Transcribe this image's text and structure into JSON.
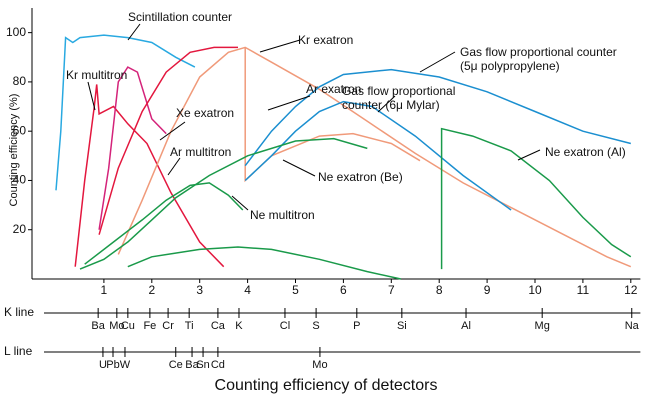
{
  "chart_data": {
    "type": "line",
    "title": "Counting efficiency of detectors",
    "y_label": "Counting efficiency (%)",
    "xlim": [
      -0.5,
      12.2
    ],
    "ylim": [
      0,
      110
    ],
    "xticks": [
      1,
      2,
      3,
      4,
      5,
      6,
      7,
      8,
      9,
      10,
      11,
      12
    ],
    "yticks": [
      20,
      40,
      60,
      80,
      100
    ],
    "series": [
      {
        "name": "Scintillation counter",
        "color": "#29a9e1",
        "x": [
          0,
          0.1,
          0.2,
          0.35,
          0.5,
          1,
          1.5,
          2,
          2.5,
          2.9
        ],
        "values": [
          36,
          60,
          98,
          96,
          98,
          99,
          98,
          96,
          90,
          86
        ]
      },
      {
        "name": "Kr multitron",
        "color": "#e3173e",
        "x": [
          0.4,
          0.6,
          0.8,
          0.85,
          0.9,
          1.2,
          1.5,
          1.9,
          2.4,
          3.0,
          3.5
        ],
        "values": [
          5,
          40,
          70,
          79,
          67,
          70,
          63,
          55,
          35,
          15,
          5
        ]
      },
      {
        "name": "Xe exatron",
        "color": "#d4237a",
        "x": [
          0.9,
          1.1,
          1.3,
          1.5,
          1.7,
          2.0,
          2.3
        ],
        "values": [
          20,
          45,
          80,
          86,
          84,
          65,
          59
        ]
      },
      {
        "name": "Ar multitron",
        "color": "#e3173e",
        "x": [
          0.9,
          1.3,
          1.8,
          2.3,
          2.8,
          3.3,
          3.8
        ],
        "values": [
          18,
          45,
          68,
          84,
          92,
          94,
          94
        ]
      },
      {
        "name": "Kr exatron",
        "color": "#f09a7a",
        "x": [
          1.3,
          1.8,
          2.4,
          3.0,
          3.6,
          3.95,
          4.5,
          5.5,
          6.5,
          7.5,
          8.5,
          9.5,
          10.5,
          11.5,
          12
        ],
        "values": [
          10,
          32,
          60,
          82,
          92,
          94,
          88,
          77,
          64,
          51,
          39,
          29,
          19,
          9,
          5
        ]
      },
      {
        "name": "Ar exatron",
        "color": "#f09a7a",
        "x": [
          3.95,
          3.95,
          4.5,
          5.5,
          6.2,
          7,
          7.6
        ],
        "values": [
          94,
          40,
          50,
          58,
          59,
          55,
          48
        ]
      },
      {
        "name": "Gas flow proportional counter (5μ polypropylene)",
        "color": "#1b8fd0",
        "x": [
          3.95,
          4.5,
          5,
          5.5,
          6,
          7,
          8,
          9,
          10,
          11,
          12
        ],
        "values": [
          46,
          60,
          70,
          78,
          83,
          85,
          82,
          76,
          68,
          60,
          55
        ]
      },
      {
        "name": "Gas flow proportional counter (6μ Mylar)",
        "color": "#1b8fd0",
        "x": [
          3.95,
          4.5,
          5,
          5.5,
          6,
          6.6,
          7.5,
          8.5,
          9.5
        ],
        "values": [
          40,
          50,
          60,
          68,
          72,
          70,
          58,
          42,
          28
        ]
      },
      {
        "name": "Ne exatron (Be)",
        "color": "#1a9a4a",
        "x": [
          0.5,
          1,
          1.5,
          2,
          2.5,
          3.2,
          4,
          5,
          5.8,
          6.5
        ],
        "values": [
          4,
          8,
          15,
          24,
          33,
          42,
          50,
          56,
          57,
          53
        ]
      },
      {
        "name": "Ne multitron",
        "color": "#1a9a4a",
        "x": [
          0.6,
          1.2,
          1.8,
          2.3,
          2.8,
          3.2,
          3.6,
          3.9
        ],
        "values": [
          6,
          15,
          24,
          32,
          38,
          39,
          34,
          28
        ]
      },
      {
        "name": "Ne exatron (Al)",
        "color": "#1a9a4a",
        "x": [
          8.05,
          8.05,
          8.7,
          9.5,
          10.3,
          11,
          11.6,
          12
        ],
        "values": [
          4,
          61,
          58,
          52,
          40,
          25,
          14,
          9
        ]
      },
      {
        "color": "#1a9a4a",
        "x": [
          1.5,
          2,
          3,
          3.8,
          4.5,
          5.5,
          6.5,
          7.2
        ],
        "values": [
          5,
          9,
          12,
          13,
          12,
          8,
          3,
          0
        ]
      }
    ],
    "k_line": {
      "label": "K line",
      "elements": [
        "Ba",
        "Mo",
        "Cu",
        "Fe",
        "Cr",
        "Ti",
        "Ca",
        "K",
        "Cl",
        "S",
        "P",
        "Si",
        "Al",
        "Mg",
        "Na"
      ],
      "x": [
        0.88,
        1.27,
        1.5,
        1.96,
        2.34,
        2.78,
        3.38,
        3.82,
        4.78,
        5.43,
        6.28,
        7.22,
        8.56,
        10.15,
        12.02
      ]
    },
    "l_line": {
      "label": "L line",
      "elements": [
        "U",
        "Pb",
        "W",
        "Ce",
        "Ba",
        "Sn",
        "Cd",
        "Mo"
      ],
      "x": [
        0.98,
        1.19,
        1.44,
        2.5,
        2.84,
        3.07,
        3.38,
        5.51
      ]
    }
  }
}
